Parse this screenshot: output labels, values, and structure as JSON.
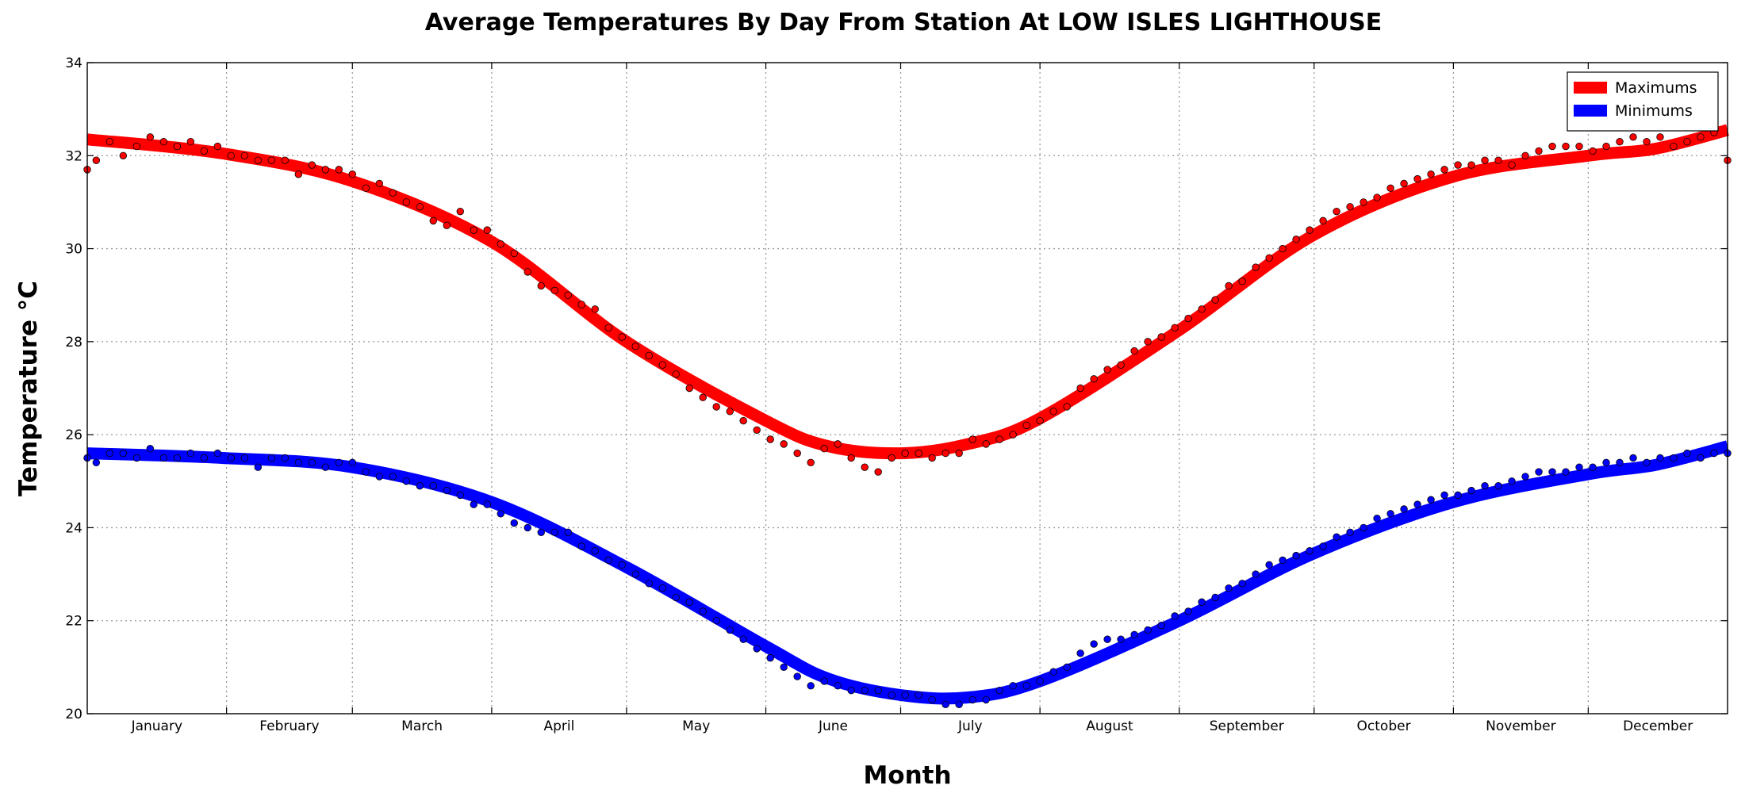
{
  "chart_data": {
    "type": "scatter",
    "title": "Average Temperatures By Day From Station At LOW ISLES LIGHTHOUSE",
    "xlabel": "Month",
    "ylabel": "Temperature °C",
    "ylim": [
      20,
      34
    ],
    "yticks": [
      20,
      22,
      24,
      26,
      28,
      30,
      32,
      34
    ],
    "xlim": [
      1,
      366
    ],
    "x_unit": "day of year",
    "categories": [
      "January",
      "February",
      "March",
      "April",
      "May",
      "June",
      "July",
      "August",
      "September",
      "October",
      "November",
      "December"
    ],
    "month_starts": [
      1,
      32,
      60,
      91,
      121,
      152,
      182,
      213,
      244,
      274,
      305,
      335
    ],
    "grid": true,
    "legend_position": "top-right",
    "series": [
      {
        "name": "Maximums",
        "color": "#ff0000",
        "points": [
          [
            1,
            31.7
          ],
          [
            3,
            31.9
          ],
          [
            6,
            32.3
          ],
          [
            9,
            32.0
          ],
          [
            12,
            32.2
          ],
          [
            15,
            32.4
          ],
          [
            18,
            32.3
          ],
          [
            21,
            32.2
          ],
          [
            24,
            32.3
          ],
          [
            27,
            32.1
          ],
          [
            30,
            32.2
          ],
          [
            33,
            32.0
          ],
          [
            36,
            32.0
          ],
          [
            39,
            31.9
          ],
          [
            42,
            31.9
          ],
          [
            45,
            31.9
          ],
          [
            48,
            31.6
          ],
          [
            51,
            31.8
          ],
          [
            54,
            31.7
          ],
          [
            57,
            31.7
          ],
          [
            60,
            31.6
          ],
          [
            63,
            31.3
          ],
          [
            66,
            31.4
          ],
          [
            69,
            31.2
          ],
          [
            72,
            31.0
          ],
          [
            75,
            30.9
          ],
          [
            78,
            30.6
          ],
          [
            81,
            30.5
          ],
          [
            84,
            30.8
          ],
          [
            87,
            30.4
          ],
          [
            90,
            30.4
          ],
          [
            93,
            30.1
          ],
          [
            96,
            29.9
          ],
          [
            99,
            29.5
          ],
          [
            102,
            29.2
          ],
          [
            105,
            29.1
          ],
          [
            108,
            29.0
          ],
          [
            111,
            28.8
          ],
          [
            114,
            28.7
          ],
          [
            117,
            28.3
          ],
          [
            120,
            28.1
          ],
          [
            123,
            27.9
          ],
          [
            126,
            27.7
          ],
          [
            129,
            27.5
          ],
          [
            132,
            27.3
          ],
          [
            135,
            27.0
          ],
          [
            138,
            26.8
          ],
          [
            141,
            26.6
          ],
          [
            144,
            26.5
          ],
          [
            147,
            26.3
          ],
          [
            150,
            26.1
          ],
          [
            153,
            25.9
          ],
          [
            156,
            25.8
          ],
          [
            159,
            25.6
          ],
          [
            162,
            25.4
          ],
          [
            165,
            25.7
          ],
          [
            168,
            25.8
          ],
          [
            171,
            25.5
          ],
          [
            174,
            25.3
          ],
          [
            177,
            25.2
          ],
          [
            180,
            25.5
          ],
          [
            183,
            25.6
          ],
          [
            186,
            25.6
          ],
          [
            189,
            25.5
          ],
          [
            192,
            25.6
          ],
          [
            195,
            25.6
          ],
          [
            198,
            25.9
          ],
          [
            201,
            25.8
          ],
          [
            204,
            25.9
          ],
          [
            207,
            26.0
          ],
          [
            210,
            26.2
          ],
          [
            213,
            26.3
          ],
          [
            216,
            26.5
          ],
          [
            219,
            26.6
          ],
          [
            222,
            27.0
          ],
          [
            225,
            27.2
          ],
          [
            228,
            27.4
          ],
          [
            231,
            27.5
          ],
          [
            234,
            27.8
          ],
          [
            237,
            28.0
          ],
          [
            240,
            28.1
          ],
          [
            243,
            28.3
          ],
          [
            246,
            28.5
          ],
          [
            249,
            28.7
          ],
          [
            252,
            28.9
          ],
          [
            255,
            29.2
          ],
          [
            258,
            29.3
          ],
          [
            261,
            29.6
          ],
          [
            264,
            29.8
          ],
          [
            267,
            30.0
          ],
          [
            270,
            30.2
          ],
          [
            273,
            30.4
          ],
          [
            276,
            30.6
          ],
          [
            279,
            30.8
          ],
          [
            282,
            30.9
          ],
          [
            285,
            31.0
          ],
          [
            288,
            31.1
          ],
          [
            291,
            31.3
          ],
          [
            294,
            31.4
          ],
          [
            297,
            31.5
          ],
          [
            300,
            31.6
          ],
          [
            303,
            31.7
          ],
          [
            306,
            31.8
          ],
          [
            309,
            31.8
          ],
          [
            312,
            31.9
          ],
          [
            315,
            31.9
          ],
          [
            318,
            31.8
          ],
          [
            321,
            32.0
          ],
          [
            324,
            32.1
          ],
          [
            327,
            32.2
          ],
          [
            330,
            32.2
          ],
          [
            333,
            32.2
          ],
          [
            336,
            32.1
          ],
          [
            339,
            32.2
          ],
          [
            342,
            32.3
          ],
          [
            345,
            32.4
          ],
          [
            348,
            32.3
          ],
          [
            351,
            32.4
          ],
          [
            354,
            32.2
          ],
          [
            357,
            32.3
          ],
          [
            360,
            32.4
          ],
          [
            363,
            32.5
          ],
          [
            366,
            31.9
          ]
        ],
        "trend": [
          [
            1,
            32.35
          ],
          [
            31,
            32.05
          ],
          [
            60,
            31.45
          ],
          [
            91,
            30.15
          ],
          [
            121,
            28.0
          ],
          [
            152,
            26.3
          ],
          [
            166,
            25.75
          ],
          [
            182,
            25.6
          ],
          [
            197,
            25.8
          ],
          [
            213,
            26.35
          ],
          [
            244,
            28.25
          ],
          [
            274,
            30.3
          ],
          [
            305,
            31.55
          ],
          [
            335,
            32.0
          ],
          [
            350,
            32.15
          ],
          [
            366,
            32.55
          ]
        ]
      },
      {
        "name": "Minimums",
        "color": "#0000ff",
        "points": [
          [
            1,
            25.5
          ],
          [
            3,
            25.4
          ],
          [
            6,
            25.6
          ],
          [
            9,
            25.6
          ],
          [
            12,
            25.5
          ],
          [
            15,
            25.7
          ],
          [
            18,
            25.5
          ],
          [
            21,
            25.5
          ],
          [
            24,
            25.6
          ],
          [
            27,
            25.5
          ],
          [
            30,
            25.6
          ],
          [
            33,
            25.5
          ],
          [
            36,
            25.5
          ],
          [
            39,
            25.3
          ],
          [
            42,
            25.5
          ],
          [
            45,
            25.5
          ],
          [
            48,
            25.4
          ],
          [
            51,
            25.4
          ],
          [
            54,
            25.3
          ],
          [
            57,
            25.4
          ],
          [
            60,
            25.4
          ],
          [
            63,
            25.2
          ],
          [
            66,
            25.1
          ],
          [
            69,
            25.1
          ],
          [
            72,
            25.0
          ],
          [
            75,
            24.9
          ],
          [
            78,
            24.9
          ],
          [
            81,
            24.8
          ],
          [
            84,
            24.7
          ],
          [
            87,
            24.5
          ],
          [
            90,
            24.5
          ],
          [
            93,
            24.3
          ],
          [
            96,
            24.1
          ],
          [
            99,
            24.0
          ],
          [
            102,
            23.9
          ],
          [
            105,
            23.9
          ],
          [
            108,
            23.9
          ],
          [
            111,
            23.6
          ],
          [
            114,
            23.5
          ],
          [
            117,
            23.3
          ],
          [
            120,
            23.2
          ],
          [
            123,
            23.0
          ],
          [
            126,
            22.8
          ],
          [
            129,
            22.7
          ],
          [
            132,
            22.5
          ],
          [
            135,
            22.4
          ],
          [
            138,
            22.2
          ],
          [
            141,
            22.0
          ],
          [
            144,
            21.8
          ],
          [
            147,
            21.6
          ],
          [
            150,
            21.4
          ],
          [
            153,
            21.2
          ],
          [
            156,
            21.0
          ],
          [
            159,
            20.8
          ],
          [
            162,
            20.6
          ],
          [
            165,
            20.7
          ],
          [
            168,
            20.6
          ],
          [
            171,
            20.5
          ],
          [
            174,
            20.5
          ],
          [
            177,
            20.5
          ],
          [
            180,
            20.4
          ],
          [
            183,
            20.4
          ],
          [
            186,
            20.4
          ],
          [
            189,
            20.3
          ],
          [
            192,
            20.2
          ],
          [
            195,
            20.2
          ],
          [
            198,
            20.3
          ],
          [
            201,
            20.3
          ],
          [
            204,
            20.5
          ],
          [
            207,
            20.6
          ],
          [
            210,
            20.6
          ],
          [
            213,
            20.7
          ],
          [
            216,
            20.9
          ],
          [
            219,
            21.0
          ],
          [
            222,
            21.3
          ],
          [
            225,
            21.5
          ],
          [
            228,
            21.6
          ],
          [
            231,
            21.6
          ],
          [
            234,
            21.7
          ],
          [
            237,
            21.8
          ],
          [
            240,
            21.9
          ],
          [
            243,
            22.1
          ],
          [
            246,
            22.2
          ],
          [
            249,
            22.4
          ],
          [
            252,
            22.5
          ],
          [
            255,
            22.7
          ],
          [
            258,
            22.8
          ],
          [
            261,
            23.0
          ],
          [
            264,
            23.2
          ],
          [
            267,
            23.3
          ],
          [
            270,
            23.4
          ],
          [
            273,
            23.5
          ],
          [
            276,
            23.6
          ],
          [
            279,
            23.8
          ],
          [
            282,
            23.9
          ],
          [
            285,
            24.0
          ],
          [
            288,
            24.2
          ],
          [
            291,
            24.3
          ],
          [
            294,
            24.4
          ],
          [
            297,
            24.5
          ],
          [
            300,
            24.6
          ],
          [
            303,
            24.7
          ],
          [
            306,
            24.7
          ],
          [
            309,
            24.8
          ],
          [
            312,
            24.9
          ],
          [
            315,
            24.9
          ],
          [
            318,
            25.0
          ],
          [
            321,
            25.1
          ],
          [
            324,
            25.2
          ],
          [
            327,
            25.2
          ],
          [
            330,
            25.2
          ],
          [
            333,
            25.3
          ],
          [
            336,
            25.3
          ],
          [
            339,
            25.4
          ],
          [
            342,
            25.4
          ],
          [
            345,
            25.5
          ],
          [
            348,
            25.4
          ],
          [
            351,
            25.5
          ],
          [
            354,
            25.5
          ],
          [
            357,
            25.6
          ],
          [
            360,
            25.5
          ],
          [
            363,
            25.6
          ],
          [
            366,
            25.6
          ]
        ],
        "trend": [
          [
            1,
            25.6
          ],
          [
            31,
            25.5
          ],
          [
            60,
            25.3
          ],
          [
            91,
            24.55
          ],
          [
            121,
            23.15
          ],
          [
            152,
            21.45
          ],
          [
            166,
            20.75
          ],
          [
            182,
            20.4
          ],
          [
            197,
            20.35
          ],
          [
            213,
            20.7
          ],
          [
            244,
            22.0
          ],
          [
            274,
            23.45
          ],
          [
            305,
            24.55
          ],
          [
            335,
            25.15
          ],
          [
            350,
            25.35
          ],
          [
            366,
            25.75
          ]
        ]
      }
    ]
  }
}
